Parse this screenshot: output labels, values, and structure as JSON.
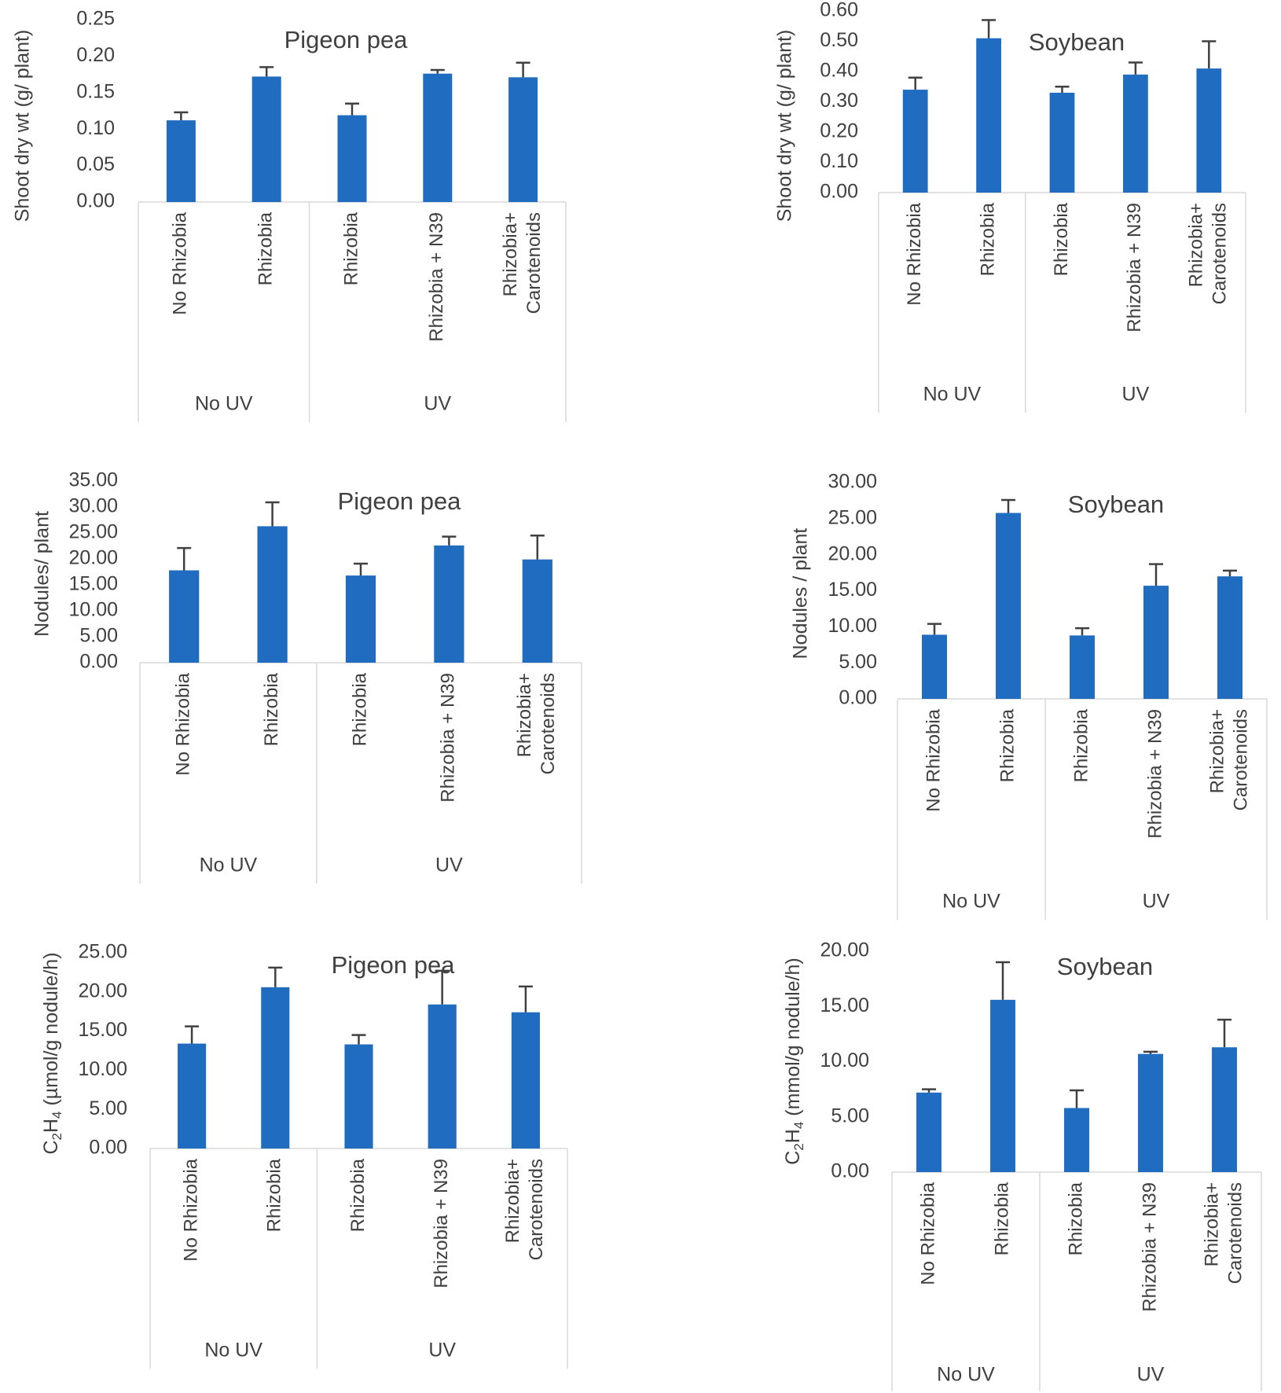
{
  "colors": {
    "bar": "#1f6cc0",
    "axis": "#d9d9d9",
    "text": "#404040"
  },
  "chart_data": [
    {
      "type": "bar",
      "title": "Pigeon pea",
      "ylabel": "Shoot dry wt  (g/ plant)",
      "ylim": [
        0,
        0.25
      ],
      "yticks": [
        "0.00",
        "0.05",
        "0.10",
        "0.15",
        "0.20",
        "0.25"
      ],
      "categories": [
        [
          "No Rhizobia"
        ],
        [
          "Rhizobia"
        ],
        [
          "Rhizobia"
        ],
        [
          "Rhizobia + N39"
        ],
        [
          "Rhizobia+",
          "Carotenoids"
        ]
      ],
      "groups": [
        {
          "label": "No UV",
          "count": 2
        },
        {
          "label": "UV",
          "count": 3
        }
      ],
      "values": [
        0.112,
        0.172,
        0.119,
        0.176,
        0.171
      ],
      "errors": [
        0.011,
        0.013,
        0.016,
        0.005,
        0.02
      ]
    },
    {
      "type": "bar",
      "title": "Soybean",
      "ylabel": "Shoot dry wt  (g/ plant)",
      "ylim": [
        0,
        0.6
      ],
      "yticks": [
        "0.00",
        "0.10",
        "0.20",
        "0.30",
        "0.40",
        "0.50",
        "0.60"
      ],
      "categories": [
        [
          "No Rhizobia"
        ],
        [
          "Rhizobia"
        ],
        [
          "Rhizobia"
        ],
        [
          "Rhizobia + N39"
        ],
        [
          "Rhizobia+",
          "Carotenoids"
        ]
      ],
      "groups": [
        {
          "label": "No UV",
          "count": 2
        },
        {
          "label": "UV",
          "count": 3
        }
      ],
      "values": [
        0.34,
        0.51,
        0.33,
        0.39,
        0.41
      ],
      "errors": [
        0.04,
        0.06,
        0.02,
        0.04,
        0.09
      ]
    },
    {
      "type": "bar",
      "title": "Pigeon pea",
      "ylabel": "Nodules/ plant",
      "ylim": [
        0,
        35
      ],
      "yticks": [
        "0.00",
        "5.00",
        "10.00",
        "15.00",
        "20.00",
        "25.00",
        "30.00",
        "35.00"
      ],
      "categories": [
        [
          "No Rhizobia"
        ],
        [
          "Rhizobia"
        ],
        [
          "Rhizobia"
        ],
        [
          "Rhizobia + N39"
        ],
        [
          "Rhizobia+",
          "Carotenoids"
        ]
      ],
      "groups": [
        {
          "label": "No UV",
          "count": 2
        },
        {
          "label": "UV",
          "count": 3
        }
      ],
      "values": [
        17.8,
        26.3,
        16.8,
        22.6,
        19.9
      ],
      "errors": [
        4.3,
        4.6,
        2.3,
        1.7,
        4.6
      ]
    },
    {
      "type": "bar",
      "title": "Soybean",
      "ylabel": "Nodules / plant",
      "ylim": [
        0,
        30
      ],
      "yticks": [
        "0.00",
        "5.00",
        "10.00",
        "15.00",
        "20.00",
        "25.00",
        "30.00"
      ],
      "categories": [
        [
          "No Rhizobia"
        ],
        [
          "Rhizobia"
        ],
        [
          "Rhizobia"
        ],
        [
          "Rhizobia + N39"
        ],
        [
          "Rhizobia+",
          "Carotenoids"
        ]
      ],
      "groups": [
        {
          "label": "No UV",
          "count": 2
        },
        {
          "label": "UV",
          "count": 3
        }
      ],
      "values": [
        8.9,
        25.8,
        8.8,
        15.7,
        17.0
      ],
      "errors": [
        1.5,
        1.8,
        1.0,
        3.0,
        0.8
      ]
    },
    {
      "type": "bar",
      "title": "Pigeon pea",
      "ylabel": "C2H4 (µmol/g nodule/h)",
      "ylabel_parts": {
        "c": "C",
        "sub1": "2",
        "h": "H",
        "sub2": "4",
        "rest": " (µmol/g nodule/h)"
      },
      "ylim": [
        0,
        25
      ],
      "yticks": [
        "0.00",
        "5.00",
        "10.00",
        "15.00",
        "20.00",
        "25.00"
      ],
      "categories": [
        [
          "No Rhizobia"
        ],
        [
          "Rhizobia"
        ],
        [
          "Rhizobia"
        ],
        [
          "Rhizobia + N39"
        ],
        [
          "Rhizobia+",
          "Carotenoids"
        ]
      ],
      "groups": [
        {
          "label": "No UV",
          "count": 2
        },
        {
          "label": "UV",
          "count": 3
        }
      ],
      "values": [
        13.4,
        20.6,
        13.3,
        18.4,
        17.4
      ],
      "errors": [
        2.2,
        2.5,
        1.2,
        4.3,
        3.3
      ]
    },
    {
      "type": "bar",
      "title": "Soybean",
      "ylabel": "C2H4 (mmol/g nodule/h)",
      "ylabel_parts": {
        "c": "C",
        "sub1": "2",
        "h": "H",
        "sub2": "4",
        "rest": " (mmol/g nodule/h)"
      },
      "ylim": [
        0,
        20
      ],
      "yticks": [
        "0.00",
        "5.00",
        "10.00",
        "15.00",
        "20.00"
      ],
      "categories": [
        [
          "No Rhizobia"
        ],
        [
          "Rhizobia"
        ],
        [
          "Rhizobia"
        ],
        [
          "Rhizobia + N39"
        ],
        [
          "Rhizobia+",
          "Carotenoids"
        ]
      ],
      "groups": [
        {
          "label": "No UV",
          "count": 2
        },
        {
          "label": "UV",
          "count": 3
        }
      ],
      "values": [
        7.2,
        15.6,
        5.8,
        10.7,
        11.3
      ],
      "errors": [
        0.3,
        3.4,
        1.6,
        0.2,
        2.5
      ]
    }
  ]
}
